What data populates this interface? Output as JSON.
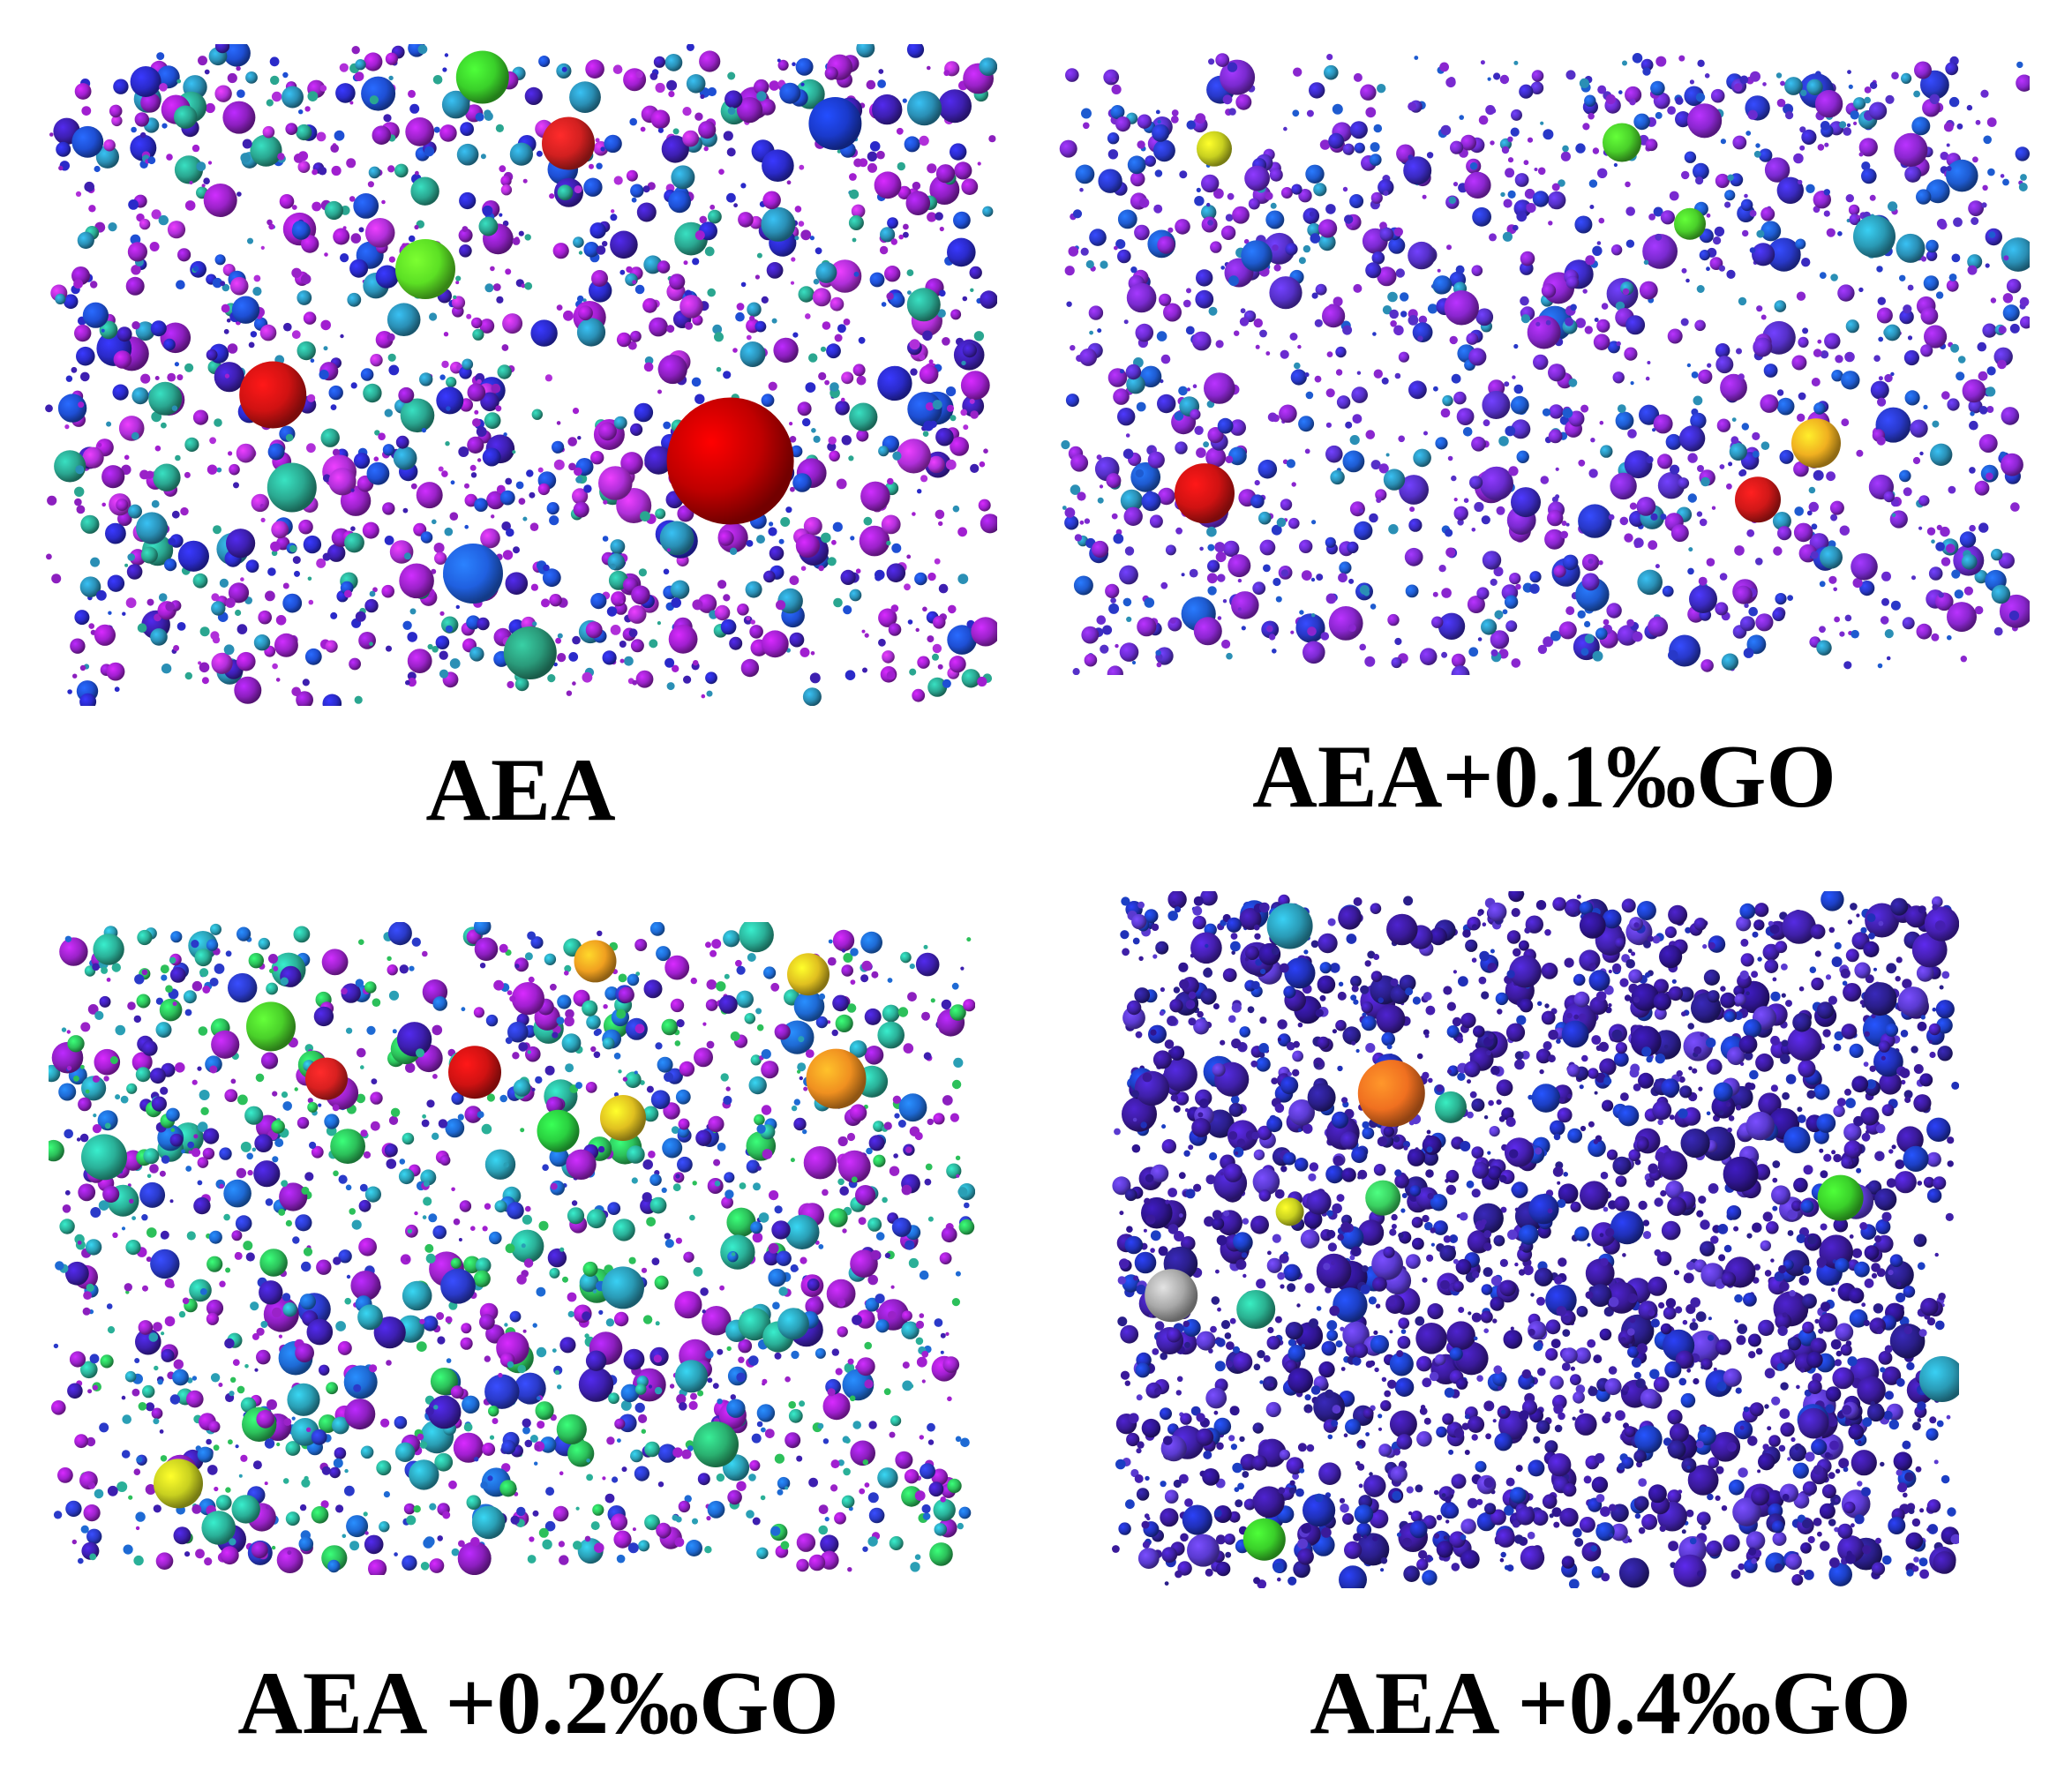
{
  "figure": {
    "panels": [
      {
        "caption": "AEA",
        "seed": 11,
        "count": 1600,
        "bg_color": "#9a22c8",
        "palette": [
          "#a11fd0",
          "#9a22c8",
          "#8c1fbf",
          "#b02fd9",
          "#3d1fb0",
          "#2a2ac9",
          "#1e4fd4",
          "#2a8fb5",
          "#2aa690"
        ],
        "large_blobs": [
          {
            "color": "#c00000",
            "cx_frac": 0.72,
            "cy_frac": 0.63,
            "r": 72
          },
          {
            "color": "#d01212",
            "cx_frac": 0.24,
            "cy_frac": 0.53,
            "r": 38
          },
          {
            "color": "#5ce024",
            "cx_frac": 0.4,
            "cy_frac": 0.34,
            "r": 34
          },
          {
            "color": "#3ad02a",
            "cx_frac": 0.46,
            "cy_frac": 0.05,
            "r": 30
          },
          {
            "color": "#d22020",
            "cx_frac": 0.55,
            "cy_frac": 0.15,
            "r": 30
          },
          {
            "color": "#2060e0",
            "cx_frac": 0.45,
            "cy_frac": 0.8,
            "r": 34
          },
          {
            "color": "#1a3acb",
            "cx_frac": 0.83,
            "cy_frac": 0.12,
            "r": 30
          },
          {
            "color": "#2a9a7a",
            "cx_frac": 0.51,
            "cy_frac": 0.92,
            "r": 30
          },
          {
            "color": "#2aa890",
            "cx_frac": 0.26,
            "cy_frac": 0.67,
            "r": 28
          }
        ]
      },
      {
        "caption": "AEA+0.1‰GO",
        "seed": 23,
        "count": 1500,
        "bg_color": "#7a2ad0",
        "palette": [
          "#8a26cf",
          "#7a2ad0",
          "#6a2bd0",
          "#5530c8",
          "#3a2ac0",
          "#2838c8",
          "#1e5bd0",
          "#2a8fb5",
          "#8a26cf"
        ],
        "large_blobs": [
          {
            "color": "#d01212",
            "cx_frac": 0.15,
            "cy_frac": 0.71,
            "r": 34
          },
          {
            "color": "#d01818",
            "cx_frac": 0.72,
            "cy_frac": 0.72,
            "r": 26
          },
          {
            "color": "#f0b020",
            "cx_frac": 0.78,
            "cy_frac": 0.63,
            "r": 28
          },
          {
            "color": "#4ad02a",
            "cx_frac": 0.58,
            "cy_frac": 0.15,
            "r": 22
          },
          {
            "color": "#c8d020",
            "cx_frac": 0.16,
            "cy_frac": 0.16,
            "r": 20
          },
          {
            "color": "#4ad02a",
            "cx_frac": 0.65,
            "cy_frac": 0.28,
            "r": 18
          },
          {
            "color": "#2a9ab5",
            "cx_frac": 0.84,
            "cy_frac": 0.3,
            "r": 24
          }
        ]
      },
      {
        "caption": "AEA +0.2‰GO",
        "seed": 37,
        "count": 1700,
        "bg_color": "#9a22c8",
        "palette": [
          "#a11fd0",
          "#9a22c8",
          "#8c1fbf",
          "#3d1fb0",
          "#2a3ac9",
          "#1e6ad4",
          "#2a9fb5",
          "#2ab098",
          "#2cc05a"
        ],
        "large_blobs": [
          {
            "color": "#f09020",
            "cx_frac": 0.85,
            "cy_frac": 0.24,
            "r": 34
          },
          {
            "color": "#f0a020",
            "cx_frac": 0.59,
            "cy_frac": 0.06,
            "r": 24
          },
          {
            "color": "#e0c020",
            "cx_frac": 0.82,
            "cy_frac": 0.08,
            "r": 24
          },
          {
            "color": "#d01212",
            "cx_frac": 0.46,
            "cy_frac": 0.23,
            "r": 30
          },
          {
            "color": "#d82020",
            "cx_frac": 0.3,
            "cy_frac": 0.24,
            "r": 24
          },
          {
            "color": "#4ad02a",
            "cx_frac": 0.24,
            "cy_frac": 0.16,
            "r": 28
          },
          {
            "color": "#2ad040",
            "cx_frac": 0.55,
            "cy_frac": 0.32,
            "r": 24
          },
          {
            "color": "#c8d020",
            "cx_frac": 0.14,
            "cy_frac": 0.86,
            "r": 28
          },
          {
            "color": "#e0c020",
            "cx_frac": 0.62,
            "cy_frac": 0.3,
            "r": 26
          },
          {
            "color": "#2ab098",
            "cx_frac": 0.06,
            "cy_frac": 0.36,
            "r": 26
          },
          {
            "color": "#2a9ab5",
            "cx_frac": 0.62,
            "cy_frac": 0.56,
            "r": 24
          },
          {
            "color": "#2ab070",
            "cx_frac": 0.72,
            "cy_frac": 0.8,
            "r": 26
          }
        ]
      },
      {
        "caption": "AEA +0.4‰GO",
        "seed": 51,
        "count": 2600,
        "bg_color": "#3a1a9a",
        "palette": [
          "#3a1a9a",
          "#2f1590",
          "#3f20a8",
          "#2a1e8a",
          "#451fb0",
          "#2030b8",
          "#1c3fc4",
          "#5a3ad0",
          "#3a1a9a"
        ],
        "large_blobs": [
          {
            "color": "#f07020",
            "cx_frac": 0.33,
            "cy_frac": 0.29,
            "r": 38
          },
          {
            "color": "#a8a8a8",
            "cx_frac": 0.07,
            "cy_frac": 0.58,
            "r": 30
          },
          {
            "color": "#3ad02a",
            "cx_frac": 0.86,
            "cy_frac": 0.44,
            "r": 26
          },
          {
            "color": "#2ab090",
            "cx_frac": 0.17,
            "cy_frac": 0.6,
            "r": 22
          },
          {
            "color": "#2a9ab5",
            "cx_frac": 0.21,
            "cy_frac": 0.05,
            "r": 26
          },
          {
            "color": "#2a9ab5",
            "cx_frac": 0.98,
            "cy_frac": 0.7,
            "r": 26
          },
          {
            "color": "#3ad02a",
            "cx_frac": 0.18,
            "cy_frac": 0.93,
            "r": 24
          },
          {
            "color": "#c8d020",
            "cx_frac": 0.21,
            "cy_frac": 0.46,
            "r": 16
          },
          {
            "color": "#3ad060",
            "cx_frac": 0.32,
            "cy_frac": 0.44,
            "r": 20
          },
          {
            "color": "#2ab090",
            "cx_frac": 0.4,
            "cy_frac": 0.31,
            "r": 18
          }
        ]
      }
    ]
  }
}
